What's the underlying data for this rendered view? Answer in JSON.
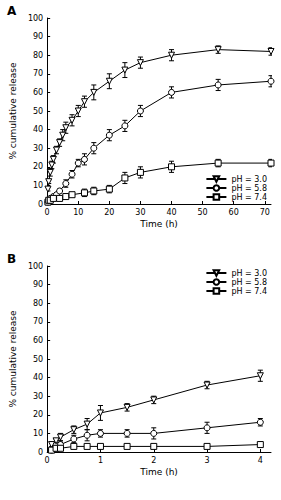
{
  "chart_data": [
    {
      "type": "line",
      "title": "A",
      "x_label": "Time (h)",
      "y_label": "% cumulative release",
      "xlim": [
        0,
        72
      ],
      "xticks": [
        0,
        10,
        20,
        30,
        40,
        50,
        60,
        70
      ],
      "ylim": [
        0,
        100
      ],
      "yticks": [
        0,
        10,
        20,
        30,
        40,
        50,
        60,
        70,
        80,
        90,
        100
      ],
      "grid": false,
      "legend": "lower right",
      "series": [
        {
          "name": "pH = 3.0",
          "color": "#000000",
          "marker": "triangle-down",
          "line_style": "solid",
          "x": [
            0.25,
            0.5,
            1,
            1.5,
            2,
            3,
            4,
            5,
            6,
            8,
            10,
            12,
            15,
            20,
            25,
            30,
            40,
            55,
            72
          ],
          "values": [
            8,
            12,
            17,
            21,
            24,
            29,
            33,
            37,
            41,
            45,
            50,
            55,
            60,
            66,
            72,
            76,
            80,
            83,
            82
          ],
          "errors": [
            1,
            1,
            2,
            2,
            2,
            2,
            2,
            3,
            3,
            3,
            3,
            3,
            4,
            4,
            4,
            3,
            3,
            2,
            2
          ]
        },
        {
          "name": "pH = 5.8",
          "color": "#000000",
          "marker": "circle",
          "line_style": "solid",
          "x": [
            0.25,
            0.5,
            1,
            2,
            3,
            4,
            6,
            8,
            10,
            12,
            15,
            20,
            25,
            30,
            40,
            55,
            72
          ],
          "values": [
            1,
            2,
            3,
            4,
            5,
            7,
            11,
            16,
            22,
            24,
            30,
            37,
            42,
            50,
            60,
            64,
            66
          ],
          "errors": [
            1,
            1,
            1,
            1,
            1,
            1,
            2,
            2,
            2,
            3,
            3,
            3,
            3,
            3,
            3,
            3,
            3
          ]
        },
        {
          "name": "pH = 7.4",
          "color": "#000000",
          "marker": "square",
          "line_style": "solid",
          "x": [
            0.25,
            0.5,
            1,
            2,
            4,
            6,
            8,
            12,
            15,
            20,
            25,
            30,
            40,
            55,
            72
          ],
          "values": [
            1,
            2,
            2,
            3,
            3,
            4,
            5,
            6,
            7,
            8,
            14,
            17,
            20,
            22,
            22
          ],
          "errors": [
            1,
            1,
            1,
            1,
            1,
            1,
            1,
            2,
            2,
            2,
            3,
            3,
            3,
            2,
            2
          ]
        }
      ]
    },
    {
      "type": "line",
      "title": "B",
      "x_label": "Time (h)",
      "y_label": "% cumulative release",
      "xlim": [
        0,
        4.2
      ],
      "xticks": [
        0,
        1,
        2,
        3,
        4
      ],
      "ylim": [
        0,
        100
      ],
      "yticks": [
        0,
        10,
        20,
        30,
        40,
        50,
        60,
        70,
        80,
        90,
        100
      ],
      "grid": false,
      "legend": "upper right",
      "series": [
        {
          "name": "pH = 3.0",
          "color": "#000000",
          "marker": "triangle-down",
          "line_style": "solid",
          "x": [
            0.083,
            0.167,
            0.25,
            0.5,
            0.75,
            1,
            1.5,
            2,
            3,
            4
          ],
          "values": [
            4,
            6,
            8,
            12,
            15,
            21,
            24,
            28,
            36,
            41
          ],
          "errors": [
            1,
            1,
            2,
            2,
            3,
            4,
            2,
            2,
            2,
            3
          ]
        },
        {
          "name": "pH = 5.8",
          "color": "#000000",
          "marker": "circle",
          "line_style": "solid",
          "x": [
            0.083,
            0.167,
            0.25,
            0.5,
            0.75,
            1,
            1.5,
            2,
            3,
            4
          ],
          "values": [
            1,
            2,
            4,
            7,
            9,
            10,
            10,
            10,
            13,
            16
          ],
          "errors": [
            1,
            1,
            2,
            2,
            3,
            2,
            2,
            3,
            3,
            2
          ]
        },
        {
          "name": "pH = 7.4",
          "color": "#000000",
          "marker": "square",
          "line_style": "solid",
          "x": [
            0.083,
            0.167,
            0.25,
            0.5,
            0.75,
            1,
            1.5,
            2,
            3,
            4
          ],
          "values": [
            1,
            2,
            2,
            3,
            3,
            3,
            3,
            3,
            3,
            4
          ],
          "errors": [
            1,
            1,
            1,
            1,
            1,
            1,
            1,
            1,
            1,
            1
          ]
        }
      ]
    }
  ]
}
